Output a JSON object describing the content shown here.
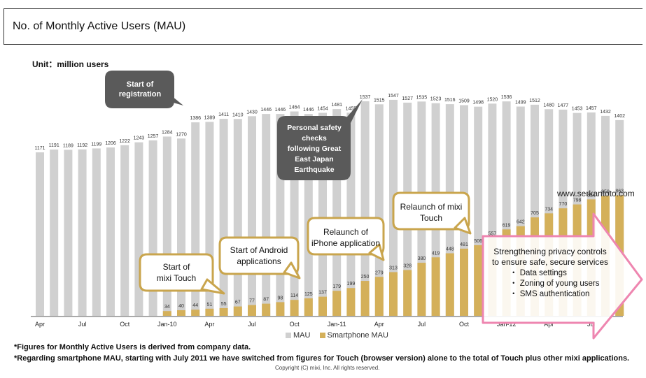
{
  "title": "No. of Monthly Active Users (MAU)",
  "unit_label": "Unit：million users",
  "legend": {
    "mau": "MAU",
    "smartphone": "Smartphone MAU"
  },
  "colors": {
    "mau": "#d0d0d0",
    "smartphone": "#d4b05a",
    "callout_dark": "#5a5a5a",
    "callout_gold": "#c9a54d",
    "arrow_pink": "#ee86b0"
  },
  "notes": [
    "*Figures for Monthly Active Users is derived from company data.",
    "*Regarding smartphone MAU, starting with July 2011 we have switched from figures for Touch (browser version) alone to the total of Touch plus other mixi applications."
  ],
  "copyright": "Copyright (C) mixi, Inc. All rights reserved.",
  "watermark": "www.serkantoto.com",
  "annotations": {
    "registration": [
      "Start of",
      "registration"
    ],
    "safety": [
      "Personal safety",
      "checks",
      "following Great",
      "East Japan",
      "Earthquake"
    ],
    "mixi_touch": [
      "Start of",
      "mixi Touch"
    ],
    "android": [
      "Start of Android",
      "applications"
    ],
    "iphone": [
      "Relaunch of",
      "iPhone application"
    ],
    "relaunch_touch": [
      "Relaunch of mixi",
      "Touch"
    ],
    "privacy": [
      "Strengthening privacy controls",
      "to ensure safe, secure services",
      "・ Data settings",
      "・ Zoning of young users",
      "・ SMS authentication"
    ]
  },
  "chart_data": {
    "type": "bar",
    "ylim": [
      0,
      1600
    ],
    "x_tick_labels": [
      "Apr",
      "",
      "",
      "Jul",
      "",
      "",
      "Oct",
      "",
      "",
      "Jan-10",
      "",
      "",
      "Apr",
      "",
      "",
      "Jul",
      "",
      "",
      "Oct",
      "",
      "",
      "Jan-11",
      "",
      "",
      "Apr",
      "",
      "",
      "Jul",
      "",
      "",
      "Oct",
      "",
      "",
      "Jan-12",
      "",
      "",
      "Apr",
      "",
      "",
      "Jul",
      "",
      ""
    ],
    "series": [
      {
        "name": "MAU",
        "values": [
          1171,
          1191,
          1189,
          1192,
          1199,
          1206,
          1222,
          1243,
          1257,
          1284,
          1270,
          1386,
          1389,
          1411,
          1410,
          1430,
          1446,
          1446,
          1464,
          1446,
          1454,
          1481,
          1455,
          1537,
          1515,
          1547,
          1527,
          1535,
          1523,
          1516,
          1509,
          1498,
          1520,
          1536,
          1499,
          1512,
          1480,
          1477,
          1453,
          1457,
          1432,
          1402
        ]
      },
      {
        "name": "Smartphone MAU",
        "values": [
          null,
          null,
          null,
          null,
          null,
          null,
          null,
          null,
          null,
          34,
          40,
          44,
          51,
          55,
          67,
          77,
          87,
          98,
          114,
          125,
          137,
          179,
          199,
          250,
          279,
          313,
          328,
          380,
          419,
          448,
          481,
          506,
          557,
          619,
          642,
          705,
          734,
          770,
          798,
          834,
          859,
          863
        ]
      }
    ]
  }
}
